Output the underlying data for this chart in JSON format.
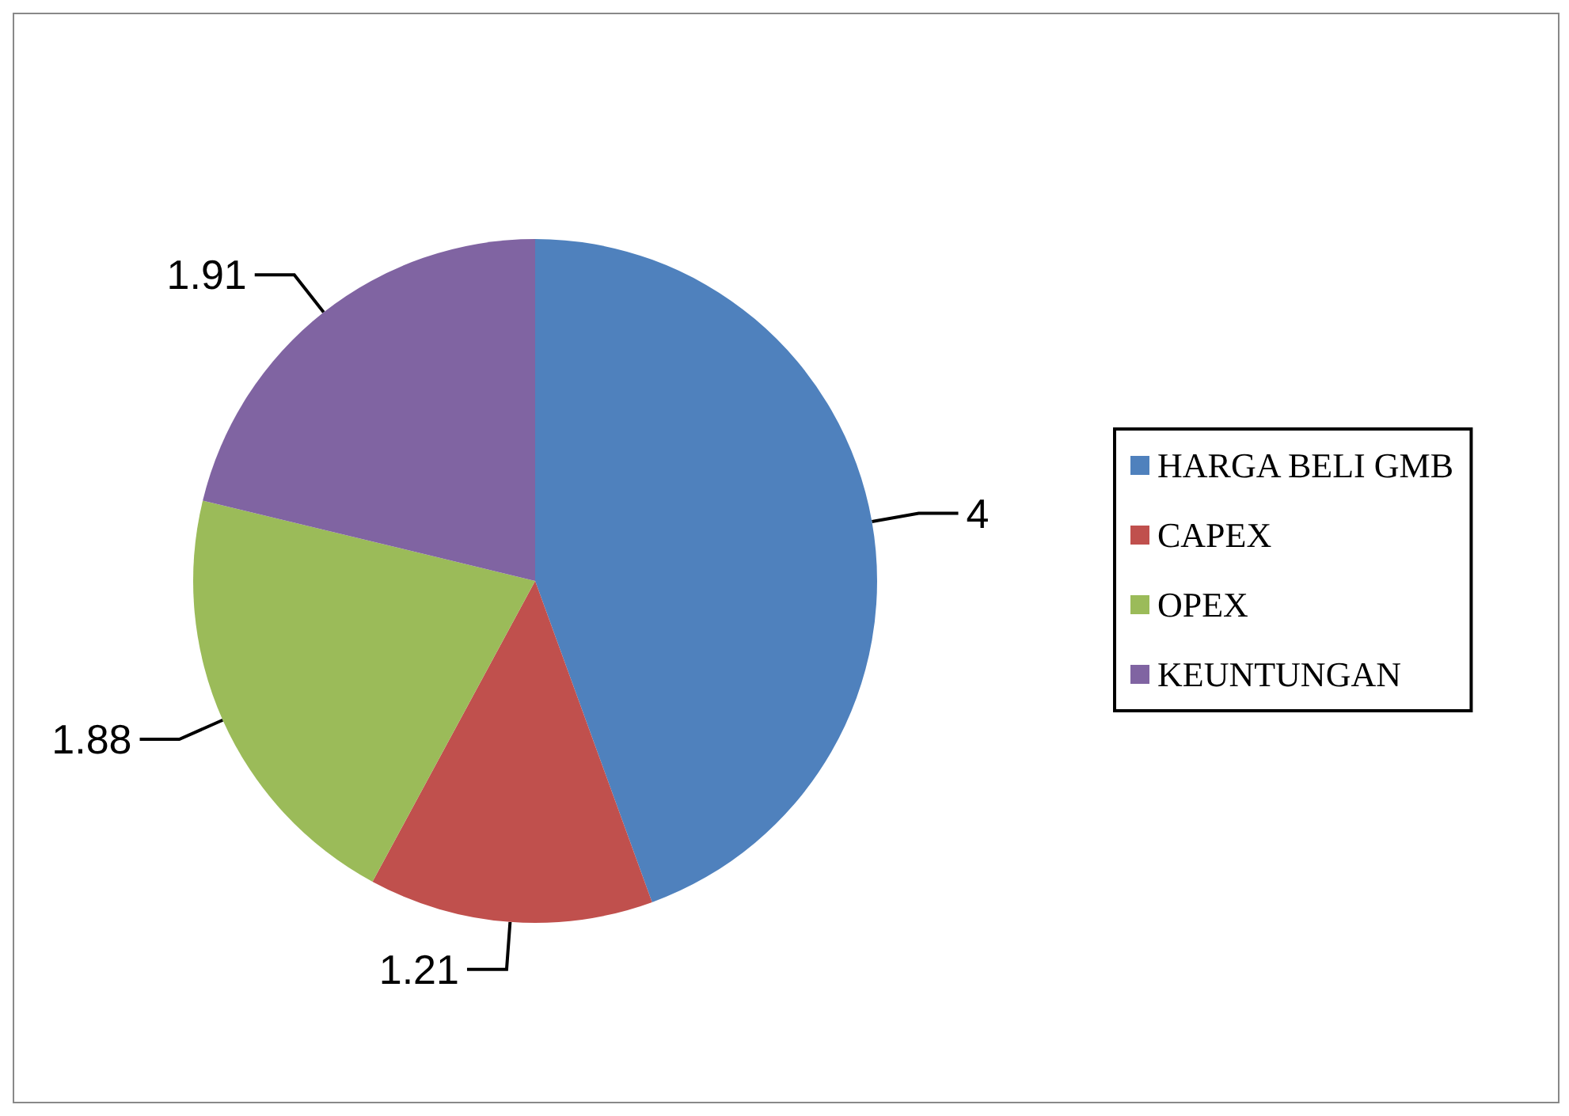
{
  "chart_data": {
    "type": "pie",
    "categories": [
      "HARGA BELI GMB",
      "CAPEX",
      "OPEX",
      "KEUNTUNGAN"
    ],
    "values": [
      4,
      1.21,
      1.88,
      1.91
    ],
    "colors": [
      "#4f81bd",
      "#c0504d",
      "#9bbb59",
      "#8064a2"
    ],
    "data_labels": true,
    "legend": "right"
  }
}
